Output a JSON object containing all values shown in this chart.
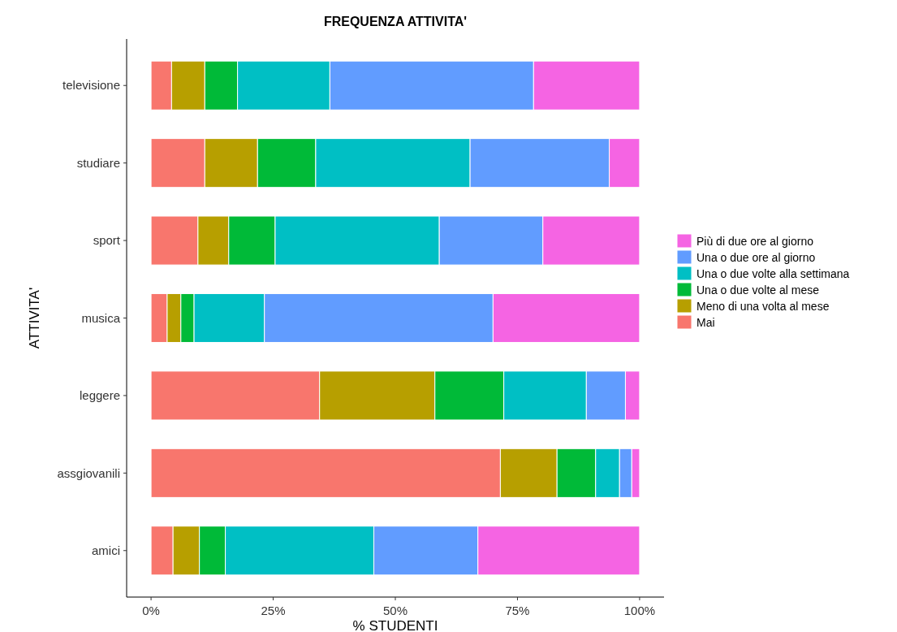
{
  "chart_data": {
    "type": "bar",
    "orientation": "horizontal",
    "stacked": true,
    "title": "FREQUENZA ATTIVITA'",
    "xlabel": "% STUDENTI",
    "ylabel": "ATTIVITA'",
    "categories": [
      "televisione",
      "studiare",
      "sport",
      "musica",
      "leggere",
      "assgiovanili",
      "amici"
    ],
    "series": [
      {
        "name": "Mai",
        "color": "#f8766d",
        "values": [
          4.2,
          11.0,
          9.6,
          3.3,
          34.5,
          71.5,
          4.5
        ]
      },
      {
        "name": "Meno di una volta al mese",
        "color": "#b79f00",
        "values": [
          6.8,
          10.8,
          6.3,
          2.8,
          23.6,
          11.6,
          5.4
        ]
      },
      {
        "name": "Una o due volte al mese",
        "color": "#00ba38",
        "values": [
          6.7,
          11.9,
          9.5,
          2.7,
          14.1,
          7.9,
          5.3
        ]
      },
      {
        "name": "Una o due volte alla settimana",
        "color": "#00bfc4",
        "values": [
          18.9,
          31.6,
          33.6,
          14.4,
          16.9,
          4.9,
          30.4
        ]
      },
      {
        "name": "Una o due ore al giorno",
        "color": "#619cff",
        "values": [
          41.7,
          28.5,
          21.2,
          46.8,
          8.0,
          2.5,
          21.3
        ]
      },
      {
        "name": "Più di due ore al giorno",
        "color": "#f564e3",
        "values": [
          21.7,
          6.2,
          19.8,
          30.0,
          2.9,
          1.6,
          33.1
        ]
      }
    ],
    "xlim": [
      -5,
      105
    ],
    "xticks": [
      {
        "value": 0,
        "label": "0%"
      },
      {
        "value": 25,
        "label": "25%"
      },
      {
        "value": 50,
        "label": "50%"
      },
      {
        "value": 75,
        "label": "75%"
      },
      {
        "value": 100,
        "label": "100%"
      }
    ],
    "grid": false,
    "legend": "right"
  }
}
